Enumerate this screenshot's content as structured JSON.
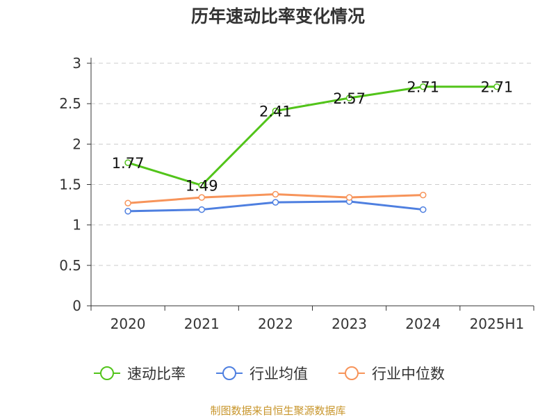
{
  "chart_data": {
    "type": "line",
    "title": "历年速动比率变化情况",
    "categories": [
      "2020",
      "2021",
      "2022",
      "2023",
      "2024",
      "2025H1"
    ],
    "ylim": [
      0,
      3
    ],
    "yticks": [
      "0",
      "0.5",
      "1",
      "1.5",
      "2",
      "2.5",
      "3"
    ],
    "grid": true,
    "legend_position": "bottom",
    "series": [
      {
        "name": "速动比率",
        "color": "#52c41a",
        "values": [
          1.77,
          1.49,
          2.41,
          2.57,
          2.71,
          2.71
        ],
        "labels": [
          "1.77",
          "1.49",
          "2.41",
          "2.57",
          "2.71",
          "2.71"
        ]
      },
      {
        "name": "行业均值",
        "color": "#4e7fe0",
        "values": [
          1.17,
          1.19,
          1.28,
          1.29,
          1.19,
          null
        ]
      },
      {
        "name": "行业中位数",
        "color": "#f7945a",
        "values": [
          1.27,
          1.34,
          1.38,
          1.34,
          1.37,
          null
        ]
      }
    ],
    "source": "制图数据来自恒生聚源数据库"
  }
}
